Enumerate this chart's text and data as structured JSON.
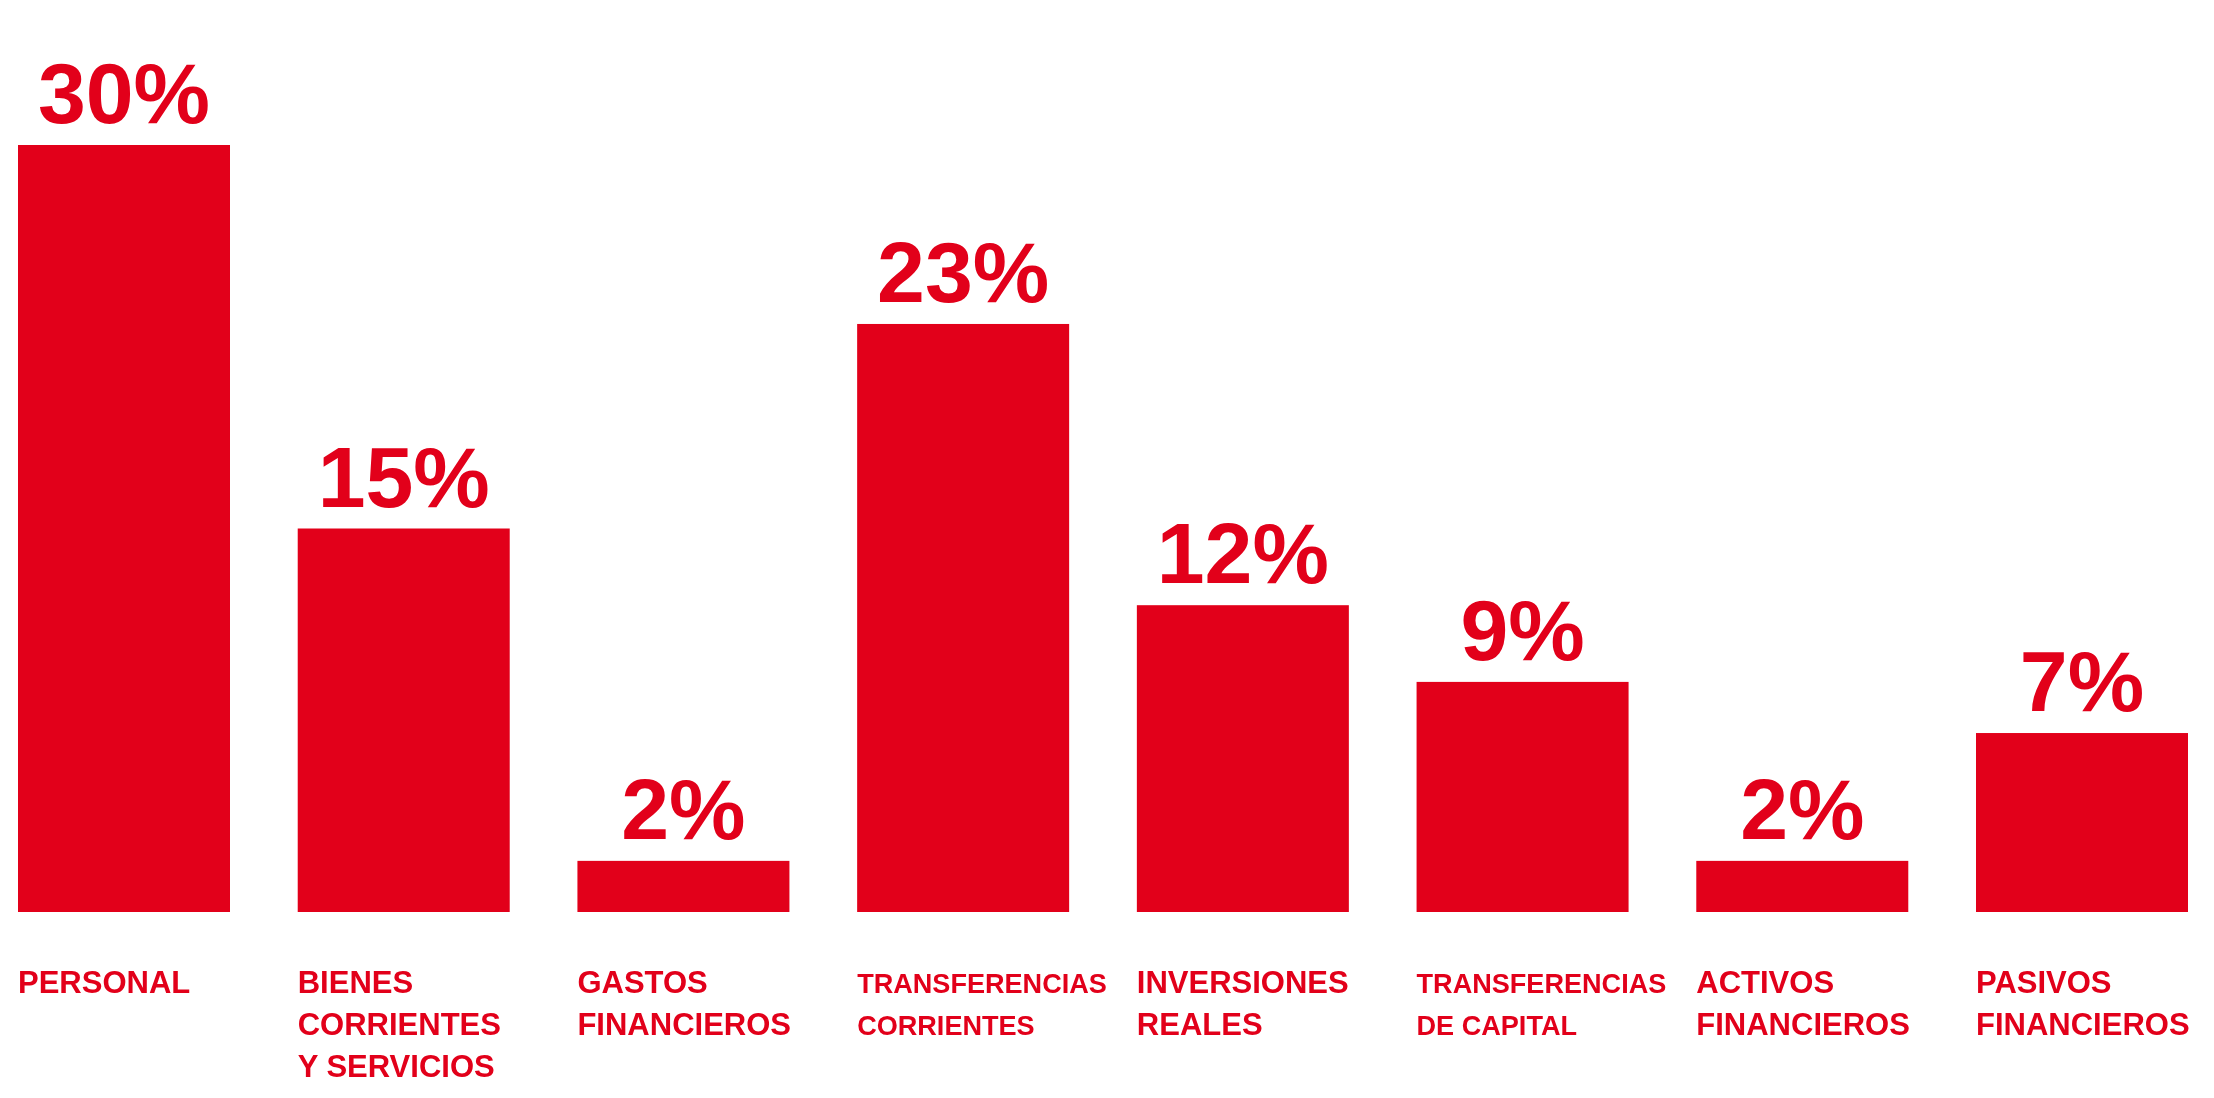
{
  "chart_data": {
    "type": "bar",
    "categories": [
      "PERSONAL",
      "BIENES\nCORRIENTES\nY SERVICIOS",
      "GASTOS\nFINANCIEROS",
      "TRANSFERENCIAS\nCORRIENTES",
      "INVERSIONES\nREALES",
      "TRANSFERENCIAS\nDE CAPITAL",
      "ACTIVOS\nFINANCIEROS",
      "PASIVOS\nFINANCIEROS"
    ],
    "values": [
      30,
      15,
      2,
      23,
      12,
      9,
      2,
      7
    ],
    "value_labels": [
      "30%",
      "15%",
      "2%",
      "23%",
      "12%",
      "9%",
      "2%",
      "7%"
    ],
    "color": "#e2001a"
  }
}
